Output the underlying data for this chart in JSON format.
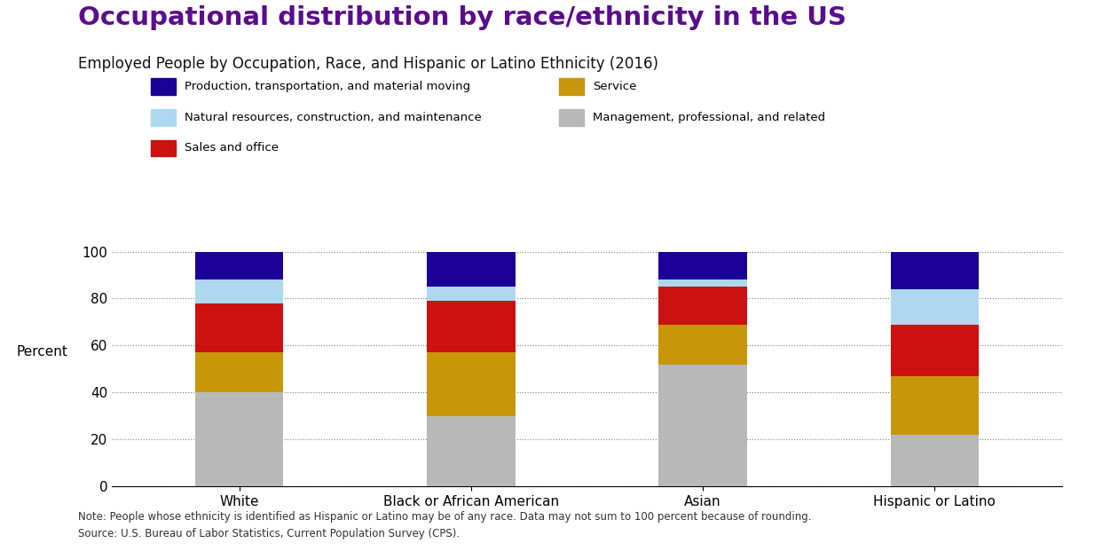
{
  "title": "Occupational distribution by race/ethnicity in the US",
  "subtitle": "Employed People by Occupation, Race, and Hispanic or Latino Ethnicity (2016)",
  "categories": [
    "White",
    "Black or African American",
    "Asian",
    "Hispanic or Latino"
  ],
  "segment_order": [
    "Management, professional, and related",
    "Service",
    "Sales and office",
    "Natural resources, construction, and maintenance",
    "Production, transportation, and material moving"
  ],
  "segments": {
    "Management, professional, and related": [
      40,
      30,
      52,
      22
    ],
    "Service": [
      17,
      27,
      17,
      25
    ],
    "Sales and office": [
      21,
      22,
      16,
      22
    ],
    "Natural resources, construction, and maintenance": [
      10,
      6,
      3,
      15
    ],
    "Production, transportation, and material moving": [
      12,
      15,
      12,
      16
    ]
  },
  "colors": {
    "Management, professional, and related": "#b8b8b8",
    "Service": "#c8960a",
    "Sales and office": "#cc1111",
    "Natural resources, construction, and maintenance": "#add8f0",
    "Production, transportation, and material moving": "#1a0096"
  },
  "legend_col1": [
    "Production, transportation, and material moving",
    "Natural resources, construction, and maintenance",
    "Sales and office"
  ],
  "legend_col2": [
    "Service",
    "Management, professional, and related"
  ],
  "ylabel": "Percent",
  "ylim": [
    0,
    100
  ],
  "yticks": [
    0,
    20,
    40,
    60,
    80,
    100
  ],
  "note": "Note: People whose ethnicity is identified as Hispanic or Latino may be of any race. Data may not sum to 100 percent because of rounding.",
  "source": "Source: U.S. Bureau of Labor Statistics, Current Population Survey (CPS).",
  "title_color": "#5b0d8c",
  "subtitle_color": "#111111",
  "background_color": "#ffffff"
}
